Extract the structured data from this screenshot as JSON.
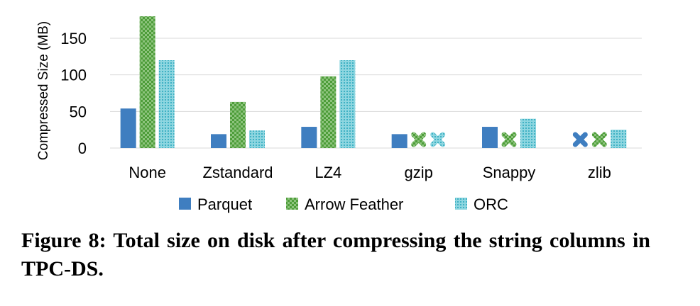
{
  "chart_data": {
    "type": "bar",
    "categories": [
      "None",
      "Zstandard",
      "LZ4",
      "gzip",
      "Snappy",
      "zlib"
    ],
    "series": [
      {
        "name": "Parquet",
        "values": [
          54,
          19,
          29,
          19,
          29,
          null
        ],
        "color": "#3f7ec0",
        "pattern": "solid"
      },
      {
        "name": "Arrow Feather",
        "values": [
          180,
          63,
          98,
          null,
          null,
          null
        ],
        "color": "#4e9d3a",
        "pattern": "checker"
      },
      {
        "name": "ORC",
        "values": [
          120,
          24,
          120,
          null,
          40,
          25
        ],
        "color": "#64c4d3",
        "pattern": "dotted"
      }
    ],
    "unsupported_marker": "x",
    "ylabel": "Compressed Size (MB)",
    "yticks": [
      0,
      50,
      100,
      150
    ],
    "ylim": [
      0,
      180
    ],
    "grid": true,
    "legend": "bottom"
  },
  "caption": "Figure 8: Total size on disk after compressing the string columns in TPC-DS."
}
